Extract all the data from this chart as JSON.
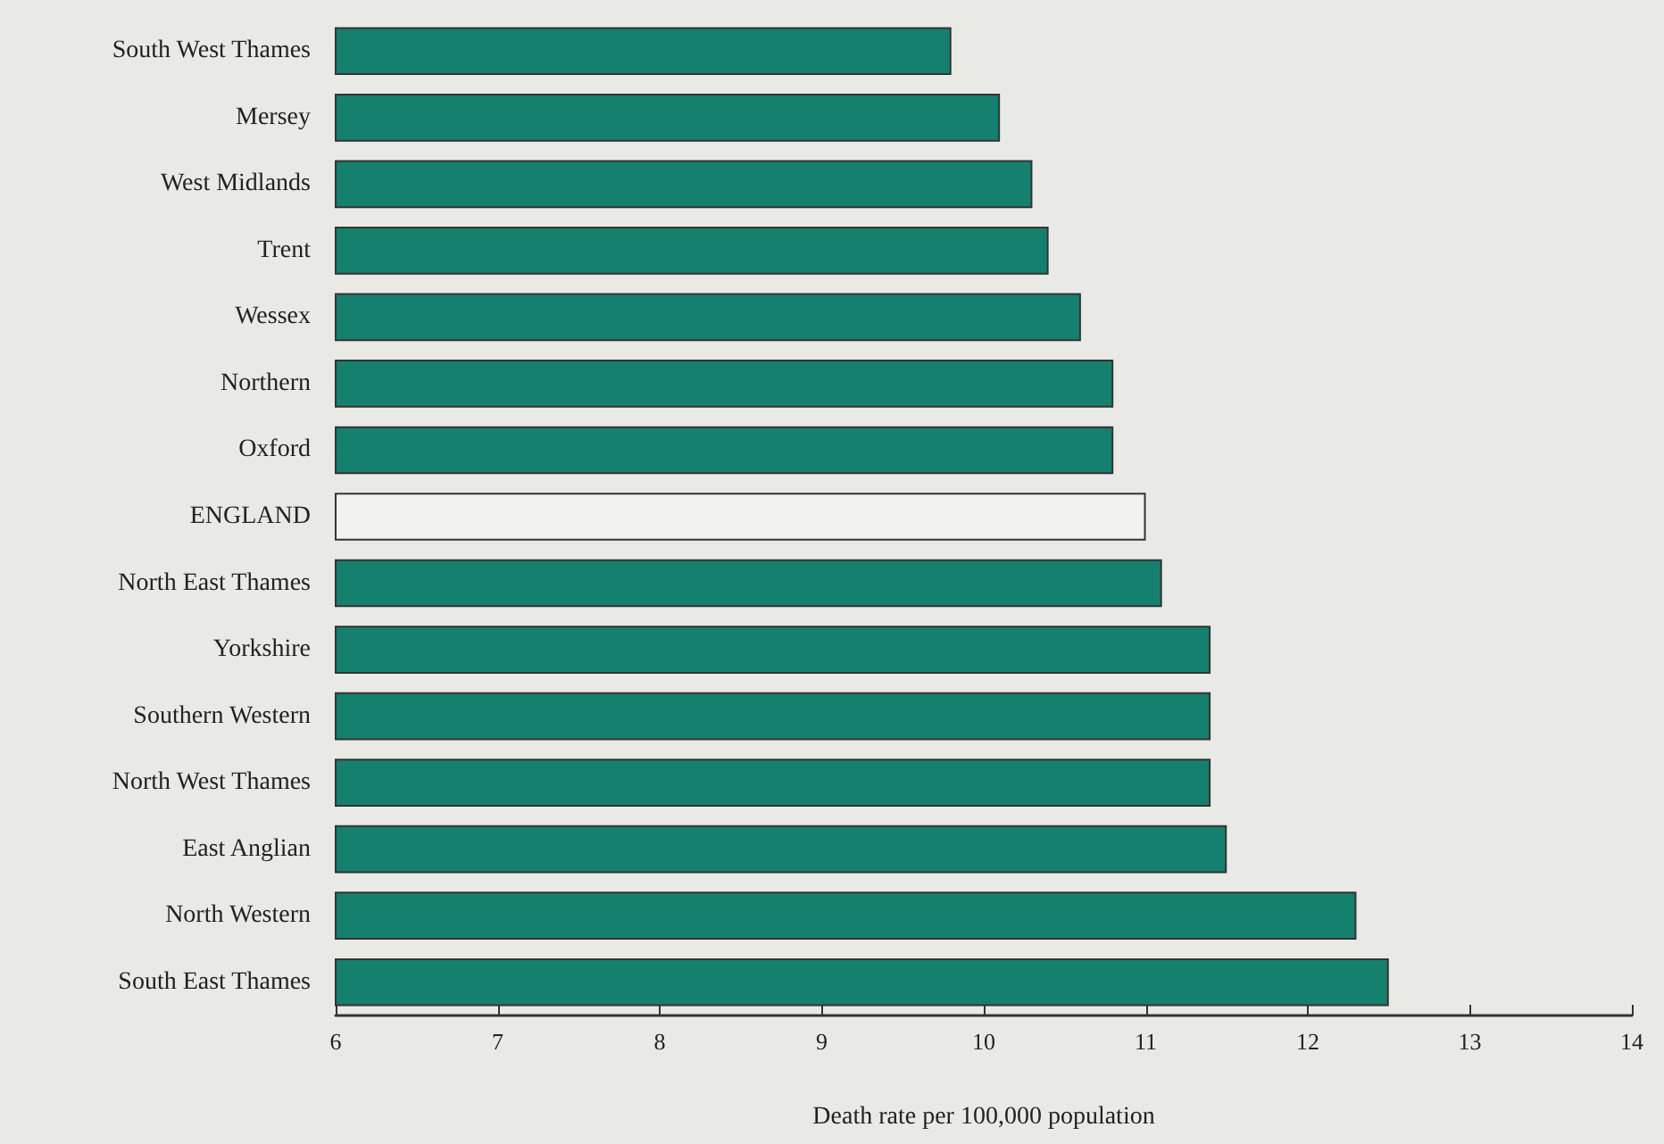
{
  "chart_data": {
    "type": "bar",
    "orientation": "horizontal",
    "xlabel": "Death rate per 100,000 population",
    "categories": [
      "South West Thames",
      "Mersey",
      "West Midlands",
      "Trent",
      "Wessex",
      "Northern",
      "Oxford",
      "ENGLAND",
      "North East Thames",
      "Yorkshire",
      "Southern Western",
      "North West Thames",
      "East Anglian",
      "North Western",
      "South East Thames"
    ],
    "values": [
      9.8,
      10.1,
      10.3,
      10.4,
      10.6,
      10.8,
      10.8,
      11.0,
      11.1,
      11.4,
      11.4,
      11.4,
      11.5,
      12.3,
      12.5
    ],
    "colors": [
      "#16806e",
      "#16806e",
      "#16806e",
      "#16806e",
      "#16806e",
      "#16806e",
      "#16806e",
      "#f2f2f0",
      "#16806e",
      "#16806e",
      "#16806e",
      "#16806e",
      "#16806e",
      "#16806e",
      "#16806e"
    ],
    "xlim": [
      6,
      14
    ],
    "xticks": [
      6,
      7,
      8,
      9,
      10,
      11,
      12,
      13,
      14
    ]
  }
}
